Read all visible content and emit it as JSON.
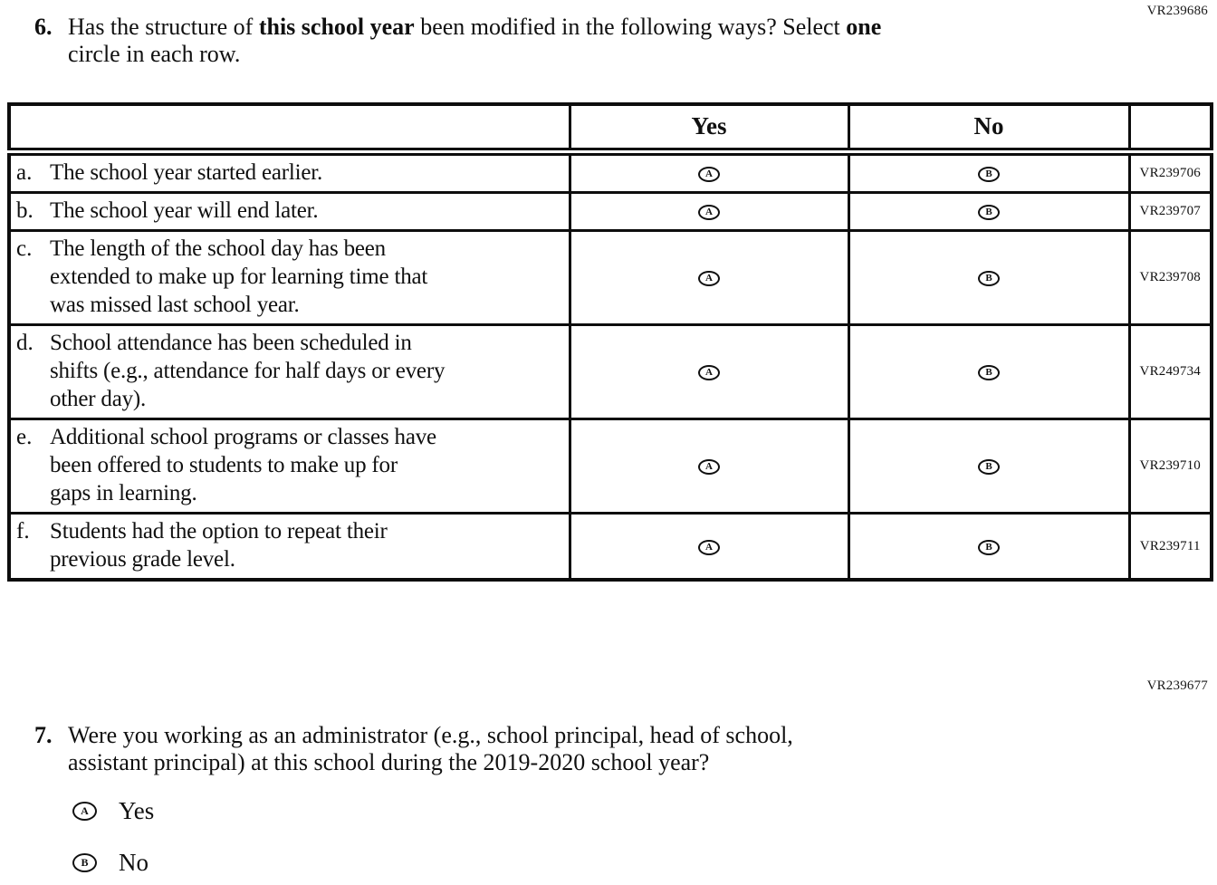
{
  "codes": {
    "question6_form_code": "VR239686",
    "question7_form_code": "VR239677"
  },
  "question6": {
    "number": "6.",
    "line1": {
      "s1": "Has the structure of ",
      "s2": "this school year",
      "s3": " been modified in the following ways? Select ",
      "s4": "one"
    },
    "line2": "circle in each row.",
    "table": {
      "col_yes": "Yes",
      "col_no": "No",
      "yes_letter": "A",
      "no_letter": "B",
      "rows": [
        {
          "letter": "a.",
          "lines": [
            "The school year started earlier."
          ],
          "code": "VR239706"
        },
        {
          "letter": "b.",
          "lines": [
            "The school year will end later."
          ],
          "code": "VR239707"
        },
        {
          "letter": "c.",
          "lines": [
            "The length of the school day has been",
            "extended to make up for learning time that",
            "was missed last school year."
          ],
          "code": "VR239708"
        },
        {
          "letter": "d.",
          "lines": [
            "School attendance has been scheduled in",
            "shifts (e.g., attendance for half days or every",
            "other day)."
          ],
          "code": "VR249734"
        },
        {
          "letter": "e.",
          "lines": [
            "Additional school programs or classes have",
            "been offered to students to make up for",
            "gaps in learning."
          ],
          "code": "VR239710"
        },
        {
          "letter": "f.",
          "lines": [
            "Students had the option to repeat their",
            "previous grade level."
          ],
          "code": "VR239711"
        }
      ]
    }
  },
  "question7": {
    "number": "7.",
    "line1": "Were you working as an administrator (e.g., school principal, head of school,",
    "line2": "assistant principal) at this school during the 2019-2020 school year?",
    "options": [
      {
        "letter": "A",
        "label": "Yes"
      },
      {
        "letter": "B",
        "label": "No"
      }
    ]
  }
}
